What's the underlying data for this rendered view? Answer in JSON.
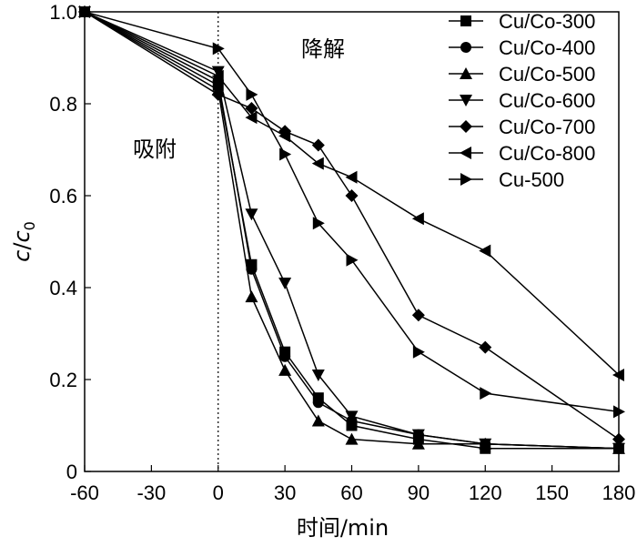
{
  "chart_data": {
    "type": "line",
    "x": [
      -60,
      0,
      15,
      30,
      45,
      60,
      90,
      120,
      180
    ],
    "xticks": [
      -60,
      -30,
      0,
      30,
      60,
      90,
      120,
      150,
      180
    ],
    "xticklabels": [
      "-60",
      "-30",
      "0",
      "30",
      "60",
      "90",
      "120",
      "150",
      "180"
    ],
    "yticks": [
      0,
      0.2,
      0.4,
      0.6,
      0.8,
      1.0
    ],
    "yticklabels": [
      "0",
      "0.2",
      "0.4",
      "0.6",
      "0.8",
      "1.0"
    ],
    "xlim": [
      -60,
      180
    ],
    "ylim": [
      0,
      1.0
    ],
    "xlabel": "时间/min",
    "ylabel": "c/c0",
    "annotations": [
      {
        "text": "吸附"
      },
      {
        "text": "降解"
      }
    ],
    "legend_position": "top-right",
    "grid": false,
    "series": [
      {
        "name": "Cu/Co-300",
        "marker": "square",
        "values": [
          1.0,
          0.84,
          0.45,
          0.26,
          0.16,
          0.1,
          0.07,
          0.05,
          0.05
        ]
      },
      {
        "name": "Cu/Co-400",
        "marker": "circle",
        "values": [
          1.0,
          0.85,
          0.44,
          0.25,
          0.15,
          0.11,
          0.08,
          0.06,
          0.05
        ]
      },
      {
        "name": "Cu/Co-500",
        "marker": "triangle-up",
        "values": [
          1.0,
          0.83,
          0.38,
          0.22,
          0.11,
          0.07,
          0.06,
          0.06,
          0.05
        ]
      },
      {
        "name": "Cu/Co-600",
        "marker": "triangle-down",
        "values": [
          1.0,
          0.87,
          0.56,
          0.41,
          0.21,
          0.12,
          0.08,
          0.06,
          0.05
        ]
      },
      {
        "name": "Cu/Co-700",
        "marker": "diamond",
        "values": [
          1.0,
          0.82,
          0.79,
          0.74,
          0.71,
          0.6,
          0.34,
          0.27,
          0.07
        ]
      },
      {
        "name": "Cu/Co-800",
        "marker": "triangle-left",
        "values": [
          1.0,
          0.86,
          0.77,
          0.73,
          0.67,
          0.64,
          0.55,
          0.48,
          0.21
        ]
      },
      {
        "name": "Cu-500",
        "marker": "triangle-right",
        "values": [
          1.0,
          0.92,
          0.82,
          0.69,
          0.54,
          0.46,
          0.26,
          0.17,
          0.13
        ]
      }
    ]
  }
}
